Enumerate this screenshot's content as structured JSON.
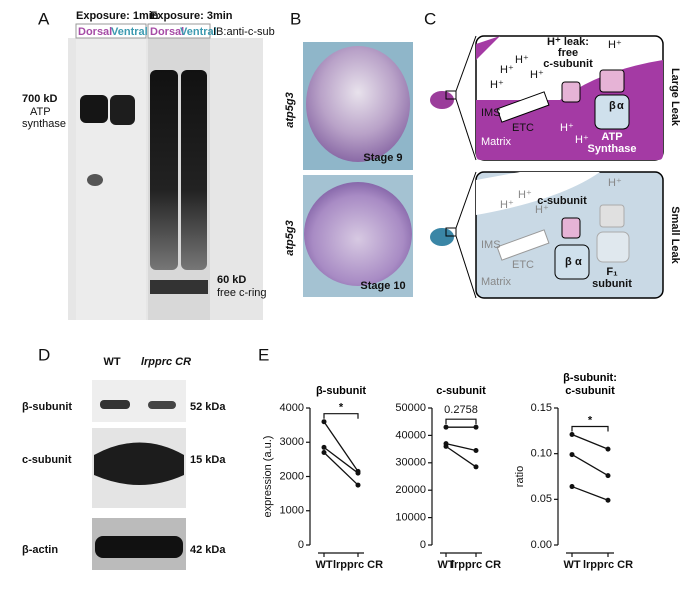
{
  "panel_a": {
    "letter": "A",
    "exposure_1": "Exposure: 1min",
    "exposure_3": "Exposure: 3min",
    "lanes": [
      "Dorsal",
      "Ventral",
      "Dorsal",
      "Ventral"
    ],
    "antibody": "IB:anti-c-sub",
    "band_top": [
      "700 kD",
      "ATP",
      "synthase"
    ],
    "band_bottom": [
      "60 kD",
      "free c-ring"
    ]
  },
  "panel_b": {
    "letter": "B",
    "gene": "atp5g3",
    "stages": [
      "Stage 9",
      "Stage 10"
    ]
  },
  "panel_c": {
    "letter": "C",
    "hplus": "H⁺",
    "leak": [
      "H⁺ leak:",
      "free",
      "c-subunit"
    ],
    "ims": "IMS",
    "etc": "ETC",
    "matrix": "Matrix",
    "synthase": [
      "ATP",
      "Synthase"
    ],
    "beta": "β",
    "alpha": "α",
    "large": "Large Leak",
    "csub": "c-subunit",
    "f1": [
      "F₁",
      "subunit"
    ],
    "small": "Small Leak"
  },
  "panel_d": {
    "letter": "D",
    "wt": "WT",
    "cr": "lrpprc CR",
    "rows": [
      "β-subunit",
      "c-subunit",
      "β-actin"
    ],
    "sizes": [
      "52 kDa",
      "15 kDa",
      "42 kDa"
    ]
  },
  "panel_e": {
    "letter": "E"
  },
  "chart_data": [
    {
      "type": "line",
      "title": "β-subunit",
      "ylabel": "expression (a.u.)",
      "categories": [
        "WT",
        "lrpprc CR"
      ],
      "ylim": [
        0,
        4000
      ],
      "yticks": [
        0,
        1000,
        2000,
        3000,
        4000
      ],
      "annotation": "*",
      "series": [
        {
          "color": "#111111",
          "values": [
            3600,
            2150
          ]
        },
        {
          "color": "#111111",
          "values": [
            2850,
            2100
          ]
        },
        {
          "color": "#111111",
          "values": [
            2700,
            1750
          ]
        }
      ]
    },
    {
      "type": "line",
      "title": "c-subunit",
      "categories": [
        "WT",
        "lrpprc CR"
      ],
      "ylim": [
        0,
        50000
      ],
      "yticks": [
        0,
        10000,
        20000,
        30000,
        40000,
        50000
      ],
      "annotation": "0.2758",
      "series": [
        {
          "color": "#111111",
          "values": [
            43000,
            43000
          ]
        },
        {
          "color": "#111111",
          "values": [
            37000,
            34500
          ]
        },
        {
          "color": "#111111",
          "values": [
            36000,
            28500
          ]
        }
      ]
    },
    {
      "type": "line",
      "title": "β-subunit: c-subunit",
      "ylabel": "ratio",
      "categories": [
        "WT",
        "lrpprc CR"
      ],
      "ylim": [
        0,
        0.15
      ],
      "yticks": [
        {
          "value": 0,
          "label": "0.00"
        },
        0.05,
        {
          "value": 0.1,
          "label": "0.10"
        },
        0.15
      ],
      "annotation": "*",
      "series": [
        {
          "color": "#111111",
          "values": [
            0.121,
            0.105
          ]
        },
        {
          "color": "#111111",
          "values": [
            0.099,
            0.076
          ]
        },
        {
          "color": "#111111",
          "values": [
            0.064,
            0.049
          ]
        }
      ]
    }
  ]
}
